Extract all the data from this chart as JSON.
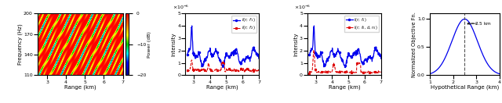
{
  "fig_width": 6.4,
  "fig_height": 1.32,
  "dpi": 100,
  "panel_a": {
    "xlabel": "Range (km)",
    "ylabel": "Frequency (Hz)",
    "xlim": [
      2.5,
      7
    ],
    "ylim": [
      110,
      200
    ],
    "cbar_label": "Power (dB)",
    "cbar_lim": [
      -20,
      0
    ],
    "xticks": [
      3,
      4,
      5,
      6,
      7
    ],
    "yticks": [
      110,
      140,
      170,
      200
    ]
  },
  "panel_b": {
    "xlabel": "Range (km)",
    "ylabel": "Intensity",
    "xlim": [
      2.5,
      7
    ],
    "ylim": [
      0,
      5e-06
    ],
    "xticks": [
      3,
      4,
      5,
      6,
      7
    ],
    "legend1": "I(r;\\; f_1)",
    "legend2": "I(r;\\; f_2)"
  },
  "panel_c": {
    "xlabel": "Range (km)",
    "ylabel": "Intensity",
    "xlim": [
      2.5,
      7
    ],
    "ylim": [
      0,
      5e-06
    ],
    "xticks": [
      3,
      4,
      5,
      6,
      7
    ],
    "legend1": "I(r;\\; f_1)",
    "legend2": "I(r;\\; f_0, d, r_0)"
  },
  "panel_d": {
    "xlabel": "Hypothetical Range (km)",
    "ylabel": "Normalized Objective Fn.",
    "xlim": [
      1,
      4
    ],
    "ylim": [
      0.0,
      1.1
    ],
    "xticks": [
      1,
      2,
      3,
      4
    ],
    "yticks": [
      0.0,
      0.5,
      1.0
    ],
    "vline_x": 2.5,
    "vline_label": "r_s = 2.5 km",
    "peak_x": 2.5,
    "sigma": 0.55
  },
  "blue_color": "#0000EE",
  "red_color": "#DD0000"
}
